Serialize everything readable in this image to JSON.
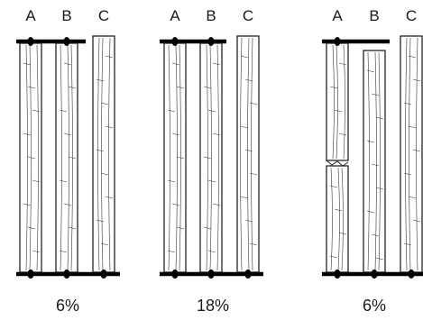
{
  "colors": {
    "board_fill": "#ffffff",
    "board_stroke": "#222222",
    "rail": "#000000",
    "text": "#1a1a1a"
  },
  "panels": [
    {
      "id": "panel-1",
      "caption": "6%",
      "boards": [
        {
          "label": "A",
          "top_nailed": true,
          "bottom_nailed": true,
          "split": false,
          "shrunk": false
        },
        {
          "label": "B",
          "top_nailed": true,
          "bottom_nailed": true,
          "split": false,
          "shrunk": false
        },
        {
          "label": "C",
          "top_nailed": false,
          "bottom_nailed": true,
          "split": false,
          "shrunk": false
        }
      ]
    },
    {
      "id": "panel-2",
      "caption": "18%",
      "boards": [
        {
          "label": "A",
          "top_nailed": true,
          "bottom_nailed": true,
          "split": false,
          "shrunk": false
        },
        {
          "label": "B",
          "top_nailed": true,
          "bottom_nailed": true,
          "split": false,
          "shrunk": false
        },
        {
          "label": "C",
          "top_nailed": false,
          "bottom_nailed": true,
          "split": false,
          "shrunk": false
        }
      ]
    },
    {
      "id": "panel-3",
      "caption": "6%",
      "boards": [
        {
          "label": "A",
          "top_nailed": true,
          "bottom_nailed": true,
          "split": true,
          "shrunk": false
        },
        {
          "label": "B",
          "top_nailed": false,
          "bottom_nailed": true,
          "split": false,
          "shrunk": true
        },
        {
          "label": "C",
          "top_nailed": false,
          "bottom_nailed": true,
          "split": false,
          "shrunk": false
        }
      ]
    }
  ]
}
